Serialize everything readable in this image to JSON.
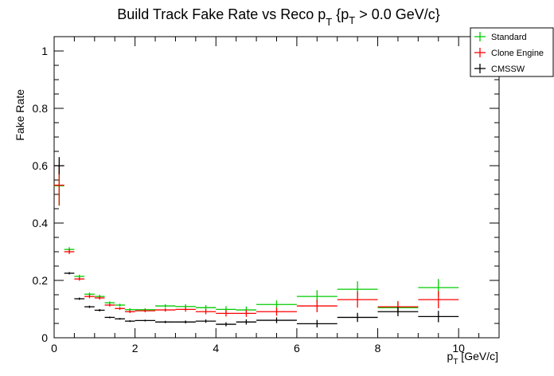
{
  "chart_data": {
    "type": "scatter",
    "title": "Build Track Fake Rate vs Reco p_T {p_T > 0.0 GeV/c}",
    "title_parts": {
      "main": "Build Track Fake Rate vs Reco p",
      "sub": "T",
      "cut_open": " {p",
      "cut_sub": "T",
      "cut_rest": " > 0.0 GeV/c}"
    },
    "xlabel": {
      "main": "p",
      "sub": "T",
      "rest": " [GeV/c]"
    },
    "ylabel": "Fake Rate",
    "xlim": [
      0,
      11
    ],
    "ylim": [
      0,
      1.05
    ],
    "xticks": [
      "0",
      "2",
      "4",
      "6",
      "8",
      "10"
    ],
    "yticks": [
      "0",
      "0.2",
      "0.4",
      "0.6",
      "0.8",
      "1"
    ],
    "grid": false,
    "legend_position": "top-right",
    "bins": [
      [
        0,
        0.25
      ],
      [
        0.25,
        0.5
      ],
      [
        0.5,
        0.75
      ],
      [
        0.75,
        1.0
      ],
      [
        1.0,
        1.25
      ],
      [
        1.25,
        1.5
      ],
      [
        1.5,
        1.75
      ],
      [
        1.75,
        2.0
      ],
      [
        2.0,
        2.5
      ],
      [
        2.5,
        3.0
      ],
      [
        3.0,
        3.5
      ],
      [
        3.5,
        4.0
      ],
      [
        4.0,
        4.5
      ],
      [
        4.5,
        5.0
      ],
      [
        5,
        6
      ],
      [
        6,
        7
      ],
      [
        7,
        8
      ],
      [
        8,
        9
      ],
      [
        9,
        10
      ]
    ],
    "series": [
      {
        "name": "Standard",
        "color": "#00cc00",
        "values": [
          0.53,
          0.308,
          0.214,
          0.152,
          0.144,
          0.122,
          0.114,
          0.098,
          0.098,
          0.111,
          0.109,
          0.105,
          0.099,
          0.097,
          0.116,
          0.144,
          0.169,
          0.105,
          0.175
        ],
        "errors": [
          0.07,
          0.008,
          0.006,
          0.006,
          0.006,
          0.005,
          0.005,
          0.005,
          0.005,
          0.006,
          0.008,
          0.009,
          0.011,
          0.012,
          0.014,
          0.022,
          0.028,
          0.02,
          0.03
        ]
      },
      {
        "name": "Clone Engine",
        "color": "#ff0000",
        "values": [
          0.532,
          0.3,
          0.205,
          0.144,
          0.139,
          0.114,
          0.102,
          0.091,
          0.094,
          0.097,
          0.099,
          0.091,
          0.085,
          0.085,
          0.091,
          0.111,
          0.133,
          0.108,
          0.133
        ],
        "errors": [
          0.07,
          0.008,
          0.006,
          0.006,
          0.006,
          0.005,
          0.005,
          0.005,
          0.005,
          0.006,
          0.008,
          0.009,
          0.011,
          0.012,
          0.014,
          0.022,
          0.028,
          0.02,
          0.03
        ]
      },
      {
        "name": "CMSSW",
        "color": "#000000",
        "values": [
          0.6,
          0.225,
          0.136,
          0.108,
          0.096,
          0.071,
          0.066,
          0.058,
          0.06,
          0.055,
          0.055,
          0.058,
          0.047,
          0.055,
          0.061,
          0.049,
          0.071,
          0.091,
          0.074
        ],
        "errors": [
          0.03,
          0.004,
          0.004,
          0.004,
          0.004,
          0.003,
          0.003,
          0.003,
          0.003,
          0.004,
          0.005,
          0.006,
          0.007,
          0.009,
          0.01,
          0.013,
          0.016,
          0.016,
          0.02
        ]
      }
    ]
  }
}
